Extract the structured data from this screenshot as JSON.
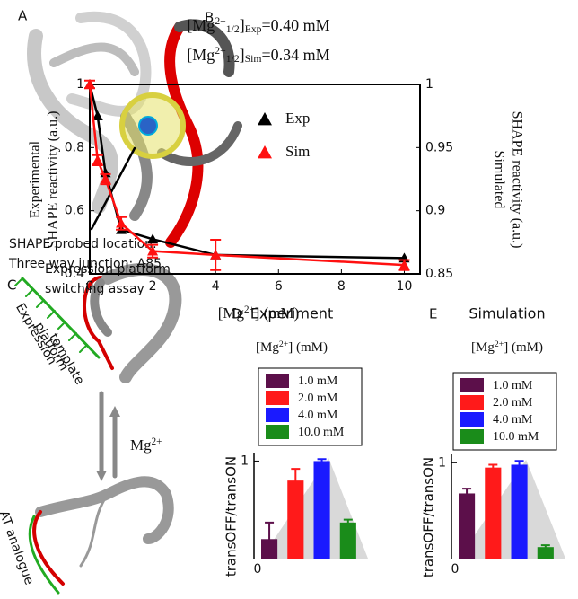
{
  "panel_labels": [
    "A",
    "B",
    "C",
    "D",
    "E"
  ],
  "panel_a": {
    "annotation": [
      "SHAPE probed location:",
      "Three way junction: A85"
    ]
  },
  "panel_c": {
    "title": [
      "Expression platform",
      "switching assay"
    ],
    "template_label": [
      "Expression",
      "platform",
      "template"
    ],
    "ion": [
      "Mg",
      "2+"
    ],
    "analogue_label": "AT analogue"
  },
  "chart_data": [
    {
      "type": "line",
      "title_lines": [
        [
          "[Mg",
          "2+",
          "1/2",
          "]",
          "Exp",
          "=0.40 mM"
        ],
        [
          "[Mg",
          "2+",
          "1/2",
          "]",
          "Sim",
          "=0.34 mM"
        ]
      ],
      "x_label": [
        "[Mg",
        "2+",
        "] (mM)"
      ],
      "y_label": [
        "Experimental",
        "SHAPE reactivity (a.u.)"
      ],
      "y2_label": [
        "Simulated",
        "SHAPE reactivity (a.u.)"
      ],
      "x": [
        0,
        0.25,
        0.5,
        1,
        2,
        4,
        10
      ],
      "xlim": [
        0,
        10.5
      ],
      "xticks": [
        0,
        2,
        4,
        6,
        8,
        10
      ],
      "ylim": [
        0.4,
        1
      ],
      "yticks": [
        0.4,
        0.6,
        0.8,
        1
      ],
      "y2lim": [
        0.85,
        1
      ],
      "y2ticks": [
        0.85,
        0.9,
        0.95,
        1
      ],
      "series": [
        {
          "name": "Exp",
          "color": "#000000",
          "values": [
            1.0,
            0.9,
            0.72,
            0.54,
            0.51,
            0.46,
            0.45
          ]
        },
        {
          "name": "Sim",
          "color": "#ff1010",
          "axis": "y2",
          "values": [
            1.0,
            0.94,
            0.925,
            0.89,
            0.868,
            0.865,
            0.857
          ],
          "errors": [
            0.003,
            0.004,
            0.004,
            0.005,
            0.005,
            0.012,
            0.004
          ]
        }
      ]
    },
    {
      "type": "bar",
      "title": "Experiment",
      "subtitle": [
        "[Mg",
        "2+",
        "] (mM)"
      ],
      "y_label": "transOFF/transON",
      "categories": [
        "1.0 mM",
        "2.0 mM",
        "4.0 mM",
        "10.0 mM"
      ],
      "colors": [
        "#5c0f4a",
        "#ff1a1a",
        "#1a1aff",
        "#1a8c1a"
      ],
      "values": [
        0.2,
        0.8,
        1.0,
        0.37
      ],
      "errors": [
        0.17,
        0.12,
        0.02,
        0.03
      ],
      "ylim": [
        0,
        1.05
      ],
      "yticks": [
        0,
        1
      ]
    },
    {
      "type": "bar",
      "title": "Simulation",
      "subtitle": [
        "[Mg",
        "2+",
        "] (mM)"
      ],
      "y_label": "transOFF/transON",
      "categories": [
        "1.0 mM",
        "2.0 mM",
        "4.0 mM",
        "10.0 mM"
      ],
      "colors": [
        "#5c0f4a",
        "#ff1a1a",
        "#1a1aff",
        "#1a8c1a"
      ],
      "values": [
        0.68,
        0.95,
        0.98,
        0.12
      ],
      "errors": [
        0.05,
        0.03,
        0.04,
        0.02
      ],
      "ylim": [
        0,
        1.05
      ],
      "yticks": [
        0,
        1
      ]
    }
  ]
}
